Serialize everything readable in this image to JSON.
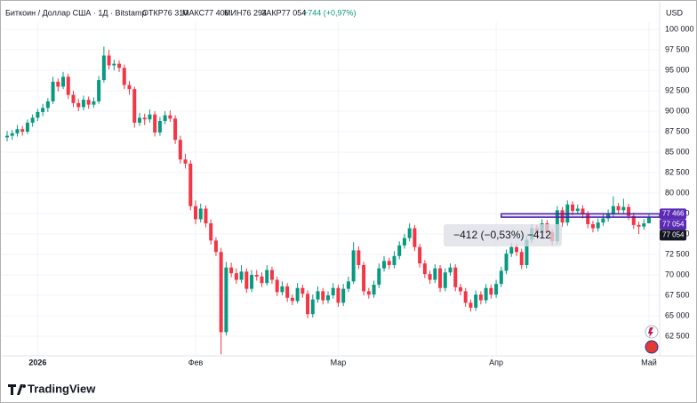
{
  "chart_data": {
    "type": "candlestick",
    "title": "Биткоин / Доллар США · 1Д · Bitstamp",
    "header": {
      "open": "ОТКР76 310",
      "high": "МАКС77 406",
      "low": "МИН76 294",
      "close": "ЗАКР77 054",
      "change": "+744 (+0,97%)"
    },
    "currency": "USD",
    "brand": "TradingView",
    "up_color": "#089981",
    "down_color": "#f23645",
    "ylim": [
      60000,
      102500
    ],
    "yticks": [
      {
        "value": 62500,
        "label": "62 500"
      },
      {
        "value": 65000,
        "label": "65 000"
      },
      {
        "value": 67500,
        "label": "67 500"
      },
      {
        "value": 70000,
        "label": "70 000"
      },
      {
        "value": 72500,
        "label": "72 500"
      },
      {
        "value": 75000,
        "label": "75 000"
      },
      {
        "value": 77500,
        "label": "77 500"
      },
      {
        "value": 80000,
        "label": "80 000"
      },
      {
        "value": 82500,
        "label": "82 500"
      },
      {
        "value": 85000,
        "label": "85 000"
      },
      {
        "value": 87500,
        "label": "87 500"
      },
      {
        "value": 90000,
        "label": "90 000"
      },
      {
        "value": 92500,
        "label": "92 500"
      },
      {
        "value": 95000,
        "label": "95 000"
      },
      {
        "value": 97500,
        "label": "97 500"
      },
      {
        "value": 100000,
        "label": "100 000"
      }
    ],
    "xticks": [
      {
        "value": 6,
        "label": "2026"
      },
      {
        "value": 37,
        "label": "Фев"
      },
      {
        "value": 65,
        "label": "Мар"
      },
      {
        "value": 96,
        "label": "Апр"
      },
      {
        "value": 126,
        "label": "Май"
      }
    ],
    "price_labels": [
      {
        "value": 77466,
        "label": "77 466",
        "color": "#5b2bb5"
      },
      {
        "value": 77054,
        "label": "77 054",
        "color": "#5b2bb5"
      },
      {
        "value": 77054,
        "label": "77 054",
        "color": "#131722"
      }
    ],
    "measure": {
      "from": 77466,
      "to": 77054,
      "start": 97,
      "label": "−412 (−0,53%) −412",
      "color": "#4a1fa8"
    },
    "ohlc": [
      [
        86800,
        87600,
        86300,
        87000
      ],
      [
        87000,
        87700,
        86500,
        87300
      ],
      [
        87300,
        88300,
        86900,
        87800
      ],
      [
        87800,
        88200,
        87000,
        87500
      ],
      [
        87500,
        89000,
        87200,
        88600
      ],
      [
        88600,
        89600,
        88100,
        89200
      ],
      [
        89200,
        90300,
        88800,
        89900
      ],
      [
        89900,
        90900,
        89400,
        90400
      ],
      [
        90400,
        91600,
        89900,
        91200
      ],
      [
        91200,
        94200,
        90900,
        93600
      ],
      [
        93600,
        94000,
        92400,
        93000
      ],
      [
        93000,
        94800,
        92700,
        94200
      ],
      [
        94200,
        94600,
        91500,
        92000
      ],
      [
        92000,
        92500,
        90500,
        91000
      ],
      [
        91000,
        91500,
        90000,
        90500
      ],
      [
        90500,
        91900,
        90100,
        91400
      ],
      [
        91400,
        91800,
        90300,
        90800
      ],
      [
        90800,
        91700,
        90400,
        91200
      ],
      [
        91200,
        94300,
        90900,
        93800
      ],
      [
        93800,
        97900,
        93500,
        96800
      ],
      [
        96800,
        97500,
        95100,
        95600
      ],
      [
        95600,
        96300,
        95000,
        95800
      ],
      [
        95800,
        96200,
        94800,
        95300
      ],
      [
        95300,
        95700,
        92700,
        93200
      ],
      [
        93200,
        93700,
        92000,
        92700
      ],
      [
        92700,
        93000,
        88000,
        88600
      ],
      [
        88600,
        89800,
        88200,
        89200
      ],
      [
        89200,
        89700,
        88300,
        89000
      ],
      [
        89000,
        90200,
        88600,
        89600
      ],
      [
        89600,
        90000,
        86900,
        87400
      ],
      [
        87400,
        89300,
        87000,
        88800
      ],
      [
        88800,
        90000,
        88400,
        89500
      ],
      [
        89500,
        90100,
        88700,
        89100
      ],
      [
        89100,
        89500,
        86000,
        86500
      ],
      [
        86500,
        87000,
        83600,
        84100
      ],
      [
        84100,
        84800,
        83000,
        83600
      ],
      [
        83600,
        84000,
        77900,
        78400
      ],
      [
        78400,
        79100,
        76200,
        76800
      ],
      [
        76800,
        78700,
        76400,
        78100
      ],
      [
        78100,
        78500,
        75800,
        76300
      ],
      [
        76300,
        76800,
        73700,
        74200
      ],
      [
        74200,
        74600,
        72300,
        72800
      ],
      [
        72800,
        73300,
        60300,
        63000
      ],
      [
        63000,
        71600,
        62600,
        70900
      ],
      [
        70900,
        71500,
        69700,
        70200
      ],
      [
        70200,
        70800,
        68900,
        69400
      ],
      [
        69400,
        71200,
        69000,
        70400
      ],
      [
        70400,
        70800,
        67800,
        68300
      ],
      [
        68300,
        70600,
        67900,
        70000
      ],
      [
        70000,
        70600,
        69300,
        69800
      ],
      [
        69800,
        70300,
        68500,
        69000
      ],
      [
        69000,
        71200,
        68700,
        70600
      ],
      [
        70600,
        71000,
        68900,
        69400
      ],
      [
        69400,
        69800,
        67400,
        67900
      ],
      [
        67900,
        69200,
        67500,
        68600
      ],
      [
        68600,
        69000,
        66700,
        67200
      ],
      [
        67200,
        67600,
        66300,
        66800
      ],
      [
        66800,
        69000,
        66500,
        68400
      ],
      [
        68400,
        68800,
        67200,
        67700
      ],
      [
        67700,
        68100,
        64700,
        65200
      ],
      [
        65200,
        67600,
        64800,
        67000
      ],
      [
        67000,
        68600,
        66600,
        68000
      ],
      [
        68000,
        68400,
        66400,
        66900
      ],
      [
        66900,
        68000,
        66500,
        67500
      ],
      [
        67500,
        69000,
        67100,
        68400
      ],
      [
        68400,
        68800,
        66100,
        66600
      ],
      [
        66600,
        68900,
        66200,
        68300
      ],
      [
        68300,
        69800,
        67900,
        69200
      ],
      [
        69200,
        74000,
        68900,
        73000
      ],
      [
        73000,
        73500,
        70700,
        71200
      ],
      [
        71200,
        71600,
        67500,
        68000
      ],
      [
        68000,
        68400,
        67100,
        67600
      ],
      [
        67600,
        69300,
        67200,
        68800
      ],
      [
        68800,
        71400,
        68400,
        70800
      ],
      [
        70800,
        72300,
        70400,
        71700
      ],
      [
        71700,
        72100,
        70700,
        71200
      ],
      [
        71200,
        72900,
        70800,
        72300
      ],
      [
        72300,
        74100,
        71900,
        73600
      ],
      [
        73600,
        75000,
        73200,
        74500
      ],
      [
        74500,
        76300,
        74100,
        75700
      ],
      [
        75700,
        76100,
        72900,
        73400
      ],
      [
        73400,
        73800,
        70900,
        71400
      ],
      [
        71400,
        71800,
        69600,
        70100
      ],
      [
        70100,
        70500,
        68900,
        69400
      ],
      [
        69400,
        71300,
        69000,
        70800
      ],
      [
        70800,
        71200,
        67900,
        68400
      ],
      [
        68400,
        70800,
        68000,
        70300
      ],
      [
        70300,
        71400,
        69900,
        70900
      ],
      [
        70900,
        71300,
        68000,
        68500
      ],
      [
        68500,
        68900,
        67500,
        68000
      ],
      [
        68000,
        68400,
        66100,
        66600
      ],
      [
        66600,
        67000,
        65500,
        66000
      ],
      [
        66000,
        68100,
        65600,
        67600
      ],
      [
        67600,
        68000,
        66400,
        66900
      ],
      [
        66900,
        68900,
        66500,
        68400
      ],
      [
        68400,
        68800,
        67100,
        67600
      ],
      [
        67600,
        69400,
        67200,
        68900
      ],
      [
        68900,
        71000,
        68500,
        70500
      ],
      [
        70500,
        73100,
        70100,
        72600
      ],
      [
        72600,
        73900,
        72200,
        73400
      ],
      [
        73400,
        73800,
        72300,
        72800
      ],
      [
        72800,
        73200,
        70700,
        71200
      ],
      [
        71200,
        74800,
        70800,
        74300
      ],
      [
        74300,
        76200,
        73900,
        75700
      ],
      [
        75700,
        76100,
        74600,
        75100
      ],
      [
        75100,
        76800,
        74700,
        76300
      ],
      [
        76300,
        76700,
        74700,
        75200
      ],
      [
        75200,
        75600,
        73600,
        74100
      ],
      [
        74100,
        78400,
        73700,
        77900
      ],
      [
        77900,
        78300,
        75900,
        76400
      ],
      [
        76400,
        79100,
        76000,
        78600
      ],
      [
        78600,
        79000,
        77300,
        77800
      ],
      [
        77800,
        78600,
        77400,
        78100
      ],
      [
        78100,
        78500,
        76900,
        77400
      ],
      [
        77400,
        77800,
        75700,
        76200
      ],
      [
        76200,
        76600,
        75200,
        75700
      ],
      [
        75700,
        76900,
        75300,
        76400
      ],
      [
        76400,
        77400,
        76000,
        76900
      ],
      [
        76900,
        78000,
        76500,
        77500
      ],
      [
        77500,
        79600,
        77100,
        78400
      ],
      [
        78400,
        78800,
        77400,
        77900
      ],
      [
        77900,
        79300,
        77500,
        78300
      ],
      [
        78300,
        78700,
        76700,
        77200
      ],
      [
        77200,
        77600,
        75600,
        76100
      ],
      [
        76100,
        76500,
        75000,
        75900
      ],
      [
        75900,
        76800,
        75500,
        76300
      ],
      [
        76310,
        77406,
        76294,
        77054
      ]
    ]
  }
}
